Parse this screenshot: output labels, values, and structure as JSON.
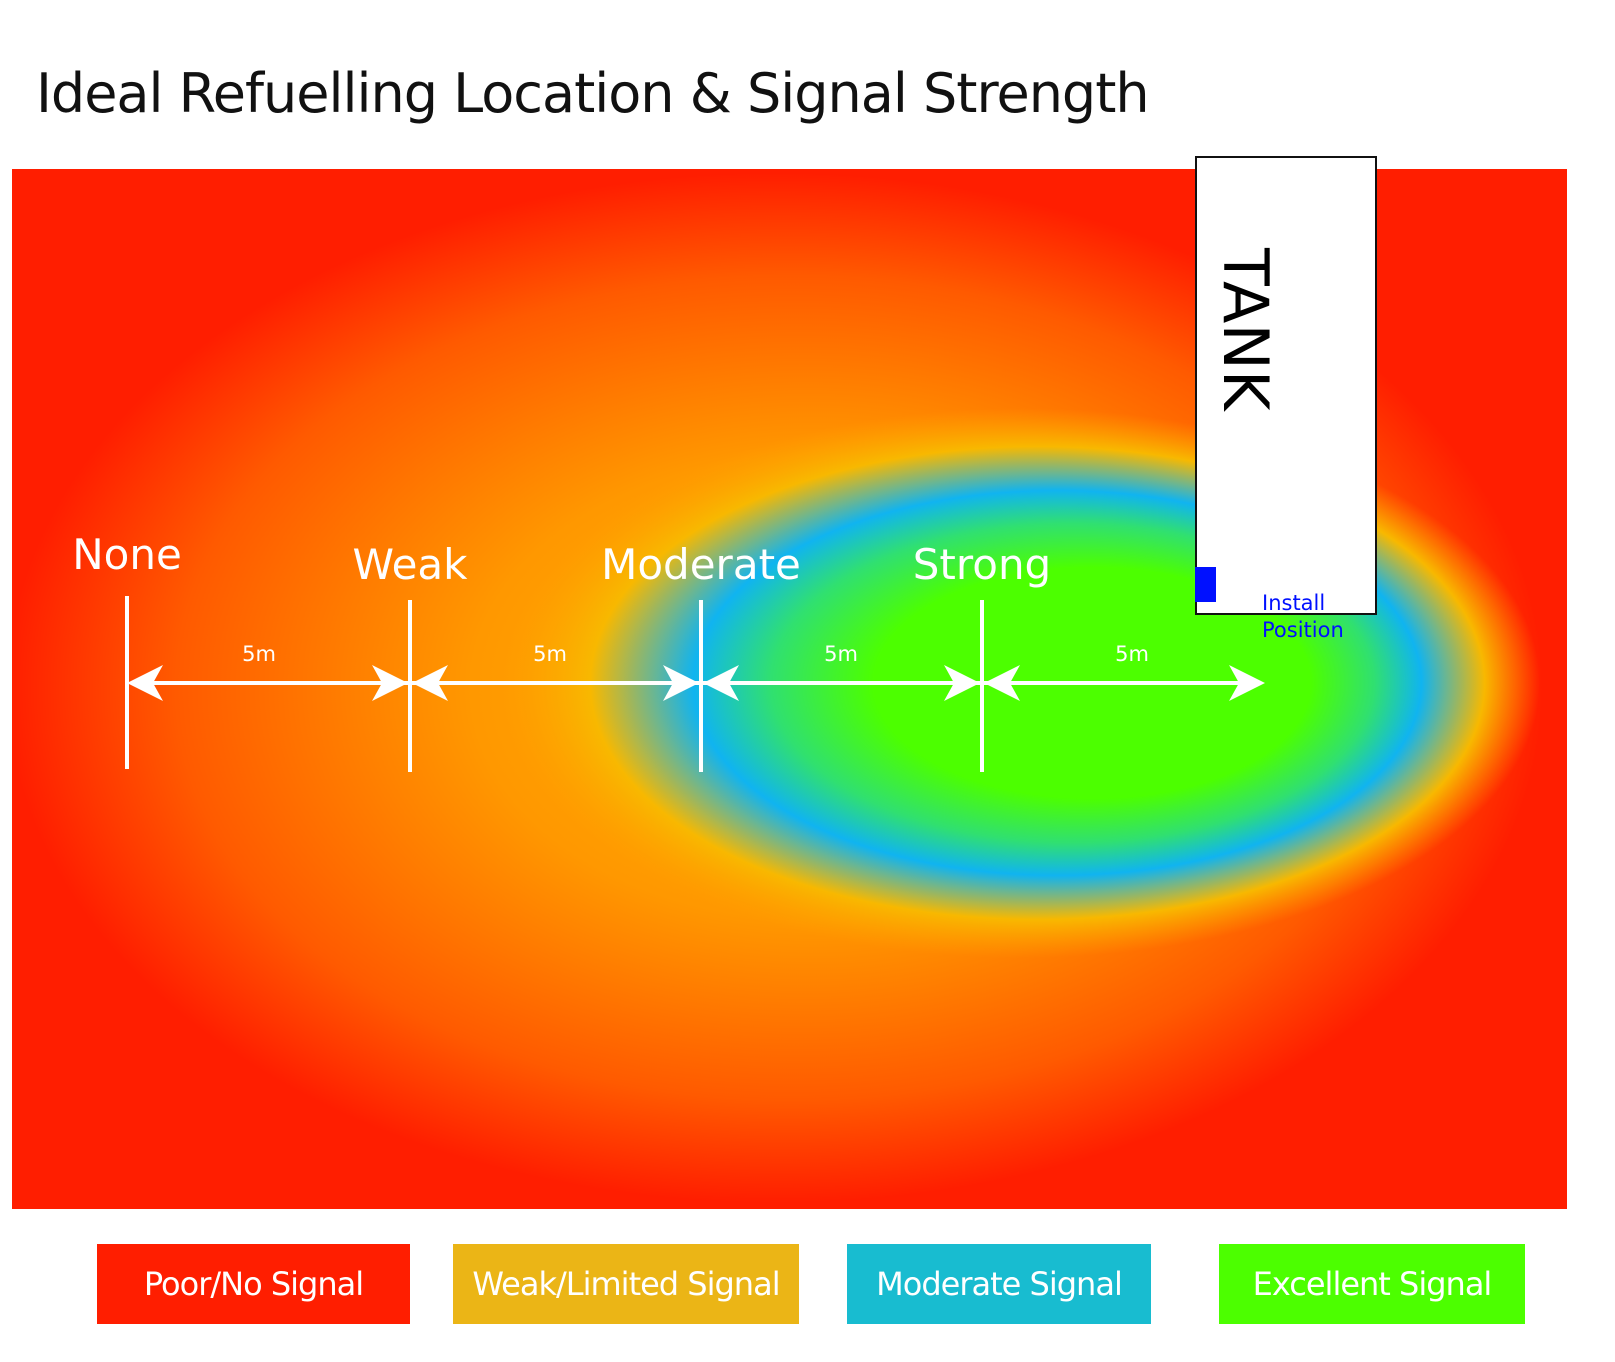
{
  "title": "Ideal Refuelling Location & Signal Strength",
  "tank": {
    "label": "TANK",
    "install_line1": "Install",
    "install_line2": "Position",
    "install_color": "#0010ff"
  },
  "scale": {
    "markers": [
      "None",
      "Weak",
      "Moderate",
      "Strong"
    ],
    "distances": [
      "5m",
      "5m",
      "5m",
      "5m"
    ]
  },
  "legend": [
    {
      "label": "Poor/No Signal",
      "color": "#ff1e00"
    },
    {
      "label": "Weak/Limited Signal",
      "color": "#ebb516"
    },
    {
      "label": "Moderate Signal",
      "color": "#18bcd0"
    },
    {
      "label": "Excellent Signal",
      "color": "#4cff00"
    }
  ]
}
